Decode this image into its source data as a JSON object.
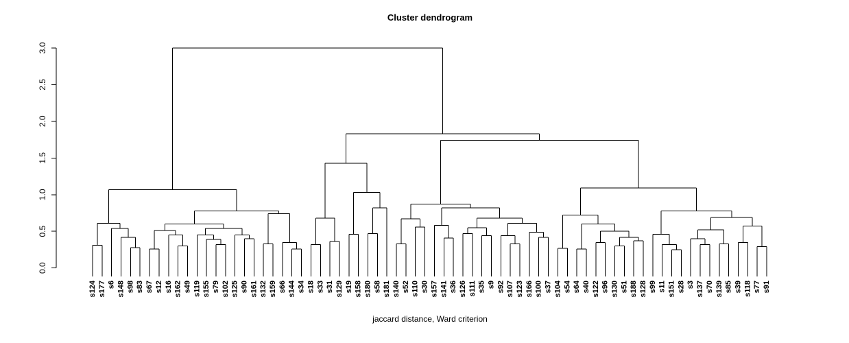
{
  "title": "Cluster dendrogram",
  "chart_data": {
    "type": "dendrogram",
    "title": "Cluster dendrogram",
    "xlabel": "jaccard distance, Ward criterion",
    "ylabel": "",
    "ylim": [
      0,
      3
    ],
    "yticks": [
      0,
      0.5,
      1,
      1.5,
      2,
      2.5,
      3
    ],
    "grid": false,
    "legend": "none",
    "palette": {
      "red": "#FF0000",
      "cyan": "#00FFFF",
      "line": "#000000"
    },
    "leaves": [
      {
        "label": "s124",
        "color": "cyan"
      },
      {
        "label": "s177",
        "color": "cyan"
      },
      {
        "label": "s6",
        "color": "red"
      },
      {
        "label": "s148",
        "color": "cyan"
      },
      {
        "label": "s98",
        "color": "red"
      },
      {
        "label": "s83",
        "color": "red"
      },
      {
        "label": "s67",
        "color": "cyan"
      },
      {
        "label": "s12",
        "color": "red"
      },
      {
        "label": "s16",
        "color": "red"
      },
      {
        "label": "s162",
        "color": "red"
      },
      {
        "label": "s49",
        "color": "cyan"
      },
      {
        "label": "s119",
        "color": "red"
      },
      {
        "label": "s155",
        "color": "red"
      },
      {
        "label": "s79",
        "color": "red"
      },
      {
        "label": "s102",
        "color": "red"
      },
      {
        "label": "s125",
        "color": "cyan"
      },
      {
        "label": "s90",
        "color": "red"
      },
      {
        "label": "s161",
        "color": "red"
      },
      {
        "label": "s132",
        "color": "red"
      },
      {
        "label": "s159",
        "color": "cyan"
      },
      {
        "label": "s66",
        "color": "red"
      },
      {
        "label": "s144",
        "color": "red"
      },
      {
        "label": "s34",
        "color": "red"
      },
      {
        "label": "s18",
        "color": "red"
      },
      {
        "label": "s33",
        "color": "red"
      },
      {
        "label": "s31",
        "color": "red"
      },
      {
        "label": "s129",
        "color": "red"
      },
      {
        "label": "s19",
        "color": "red"
      },
      {
        "label": "s158",
        "color": "cyan"
      },
      {
        "label": "s180",
        "color": "red"
      },
      {
        "label": "s58",
        "color": "red"
      },
      {
        "label": "s181",
        "color": "red"
      },
      {
        "label": "s140",
        "color": "cyan"
      },
      {
        "label": "s52",
        "color": "cyan"
      },
      {
        "label": "s110",
        "color": "cyan"
      },
      {
        "label": "s30",
        "color": "cyan"
      },
      {
        "label": "s157",
        "color": "cyan"
      },
      {
        "label": "s141",
        "color": "cyan"
      },
      {
        "label": "s36",
        "color": "cyan"
      },
      {
        "label": "s126",
        "color": "red"
      },
      {
        "label": "s111",
        "color": "cyan"
      },
      {
        "label": "s35",
        "color": "red"
      },
      {
        "label": "s9",
        "color": "cyan"
      },
      {
        "label": "s92",
        "color": "red"
      },
      {
        "label": "s107",
        "color": "cyan"
      },
      {
        "label": "s123",
        "color": "cyan"
      },
      {
        "label": "s166",
        "color": "red"
      },
      {
        "label": "s100",
        "color": "red"
      },
      {
        "label": "s37",
        "color": "red"
      },
      {
        "label": "s104",
        "color": "cyan"
      },
      {
        "label": "s54",
        "color": "cyan"
      },
      {
        "label": "s64",
        "color": "cyan"
      },
      {
        "label": "s40",
        "color": "cyan"
      },
      {
        "label": "s122",
        "color": "cyan"
      },
      {
        "label": "s96",
        "color": "red"
      },
      {
        "label": "s130",
        "color": "cyan"
      },
      {
        "label": "s51",
        "color": "red"
      },
      {
        "label": "s188",
        "color": "cyan"
      },
      {
        "label": "s128",
        "color": "cyan"
      },
      {
        "label": "s99",
        "color": "red"
      },
      {
        "label": "s11",
        "color": "red"
      },
      {
        "label": "s151",
        "color": "red"
      },
      {
        "label": "s28",
        "color": "red"
      },
      {
        "label": "s3",
        "color": "cyan"
      },
      {
        "label": "s137",
        "color": "cyan"
      },
      {
        "label": "s70",
        "color": "cyan"
      },
      {
        "label": "s139",
        "color": "cyan"
      },
      {
        "label": "s85",
        "color": "cyan"
      },
      {
        "label": "s39",
        "color": "red"
      },
      {
        "label": "s118",
        "color": "cyan"
      },
      {
        "label": "s77",
        "color": "red"
      },
      {
        "label": "s91",
        "color": "cyan"
      }
    ],
    "tree": [
      3.0,
      [
        1.07,
        [
          0.61,
          [
            0.31,
            "s124",
            "s177"
          ],
          [
            0.54,
            "s6",
            [
              0.42,
              "s148",
              [
                0.28,
                "s98",
                "s83"
              ]
            ]
          ]
        ],
        [
          0.78,
          [
            0.6,
            [
              0.51,
              [
                0.26,
                "s67",
                "s12"
              ],
              [
                0.45,
                "s16",
                [
                  0.3,
                  "s162",
                  "s49"
                ]
              ]
            ],
            [
              0.54,
              [
                0.45,
                "s119",
                [
                  0.39,
                  "s155",
                  [
                    0.32,
                    "s79",
                    "s102"
                  ]
                ]
              ],
              [
                0.45,
                "s125",
                [
                  0.4,
                  "s90",
                  "s161"
                ]
              ]
            ]
          ],
          [
            0.74,
            [
              0.33,
              "s132",
              "s159"
            ],
            [
              0.35,
              "s66",
              [
                0.26,
                "s144",
                "s34"
              ]
            ]
          ]
        ]
      ],
      [
        1.83,
        [
          1.43,
          [
            0.68,
            [
              0.32,
              "s18",
              "s33"
            ],
            [
              0.36,
              "s31",
              "s129"
            ]
          ],
          [
            1.03,
            [
              0.46,
              "s19",
              "s158"
            ],
            [
              0.82,
              [
                0.47,
                "s180",
                "s58"
              ],
              "s181"
            ]
          ]
        ],
        [
          1.74,
          [
            0.87,
            [
              0.67,
              [
                0.33,
                "s140",
                "s52"
              ],
              [
                0.56,
                "s110",
                "s30"
              ]
            ],
            [
              0.82,
              [
                0.58,
                "s157",
                [
                  0.41,
                  "s141",
                  "s36"
                ]
              ],
              [
                0.68,
                [
                  0.55,
                  [
                    0.47,
                    "s126",
                    "s111"
                  ],
                  [
                    0.44,
                    "s35",
                    "s9"
                  ]
                ],
                [
                  0.61,
                  [
                    0.44,
                    "s92",
                    [
                      0.33,
                      "s107",
                      "s123"
                    ]
                  ],
                  [
                    0.49,
                    "s166",
                    [
                      0.42,
                      "s100",
                      "s37"
                    ]
                  ]
                ]
              ]
            ]
          ],
          [
            1.09,
            [
              0.72,
              [
                0.27,
                "s104",
                "s54"
              ],
              [
                0.6,
                [
                  0.26,
                  "s64",
                  "s40"
                ],
                [
                  0.5,
                  [
                    0.35,
                    "s122",
                    "s96"
                  ],
                  [
                    0.42,
                    [
                      0.3,
                      "s130",
                      "s51"
                    ],
                    [
                      0.37,
                      "s188",
                      "s128"
                    ]
                  ]
                ]
              ]
            ],
            [
              0.78,
              [
                0.46,
                "s99",
                [
                  0.32,
                  "s11",
                  [
                    0.25,
                    "s151",
                    "s28"
                  ]
                ]
              ],
              [
                0.69,
                [
                  0.52,
                  [
                    0.4,
                    "s3",
                    [
                      0.32,
                      "s137",
                      "s70"
                    ]
                  ],
                  [
                    0.33,
                    "s139",
                    "s85"
                  ]
                ],
                [
                  0.57,
                  [
                    0.35,
                    "s39",
                    "s118"
                  ],
                  [
                    0.29,
                    "s77",
                    "s91"
                  ]
                ]
              ]
            ]
          ]
        ]
      ]
    ]
  }
}
